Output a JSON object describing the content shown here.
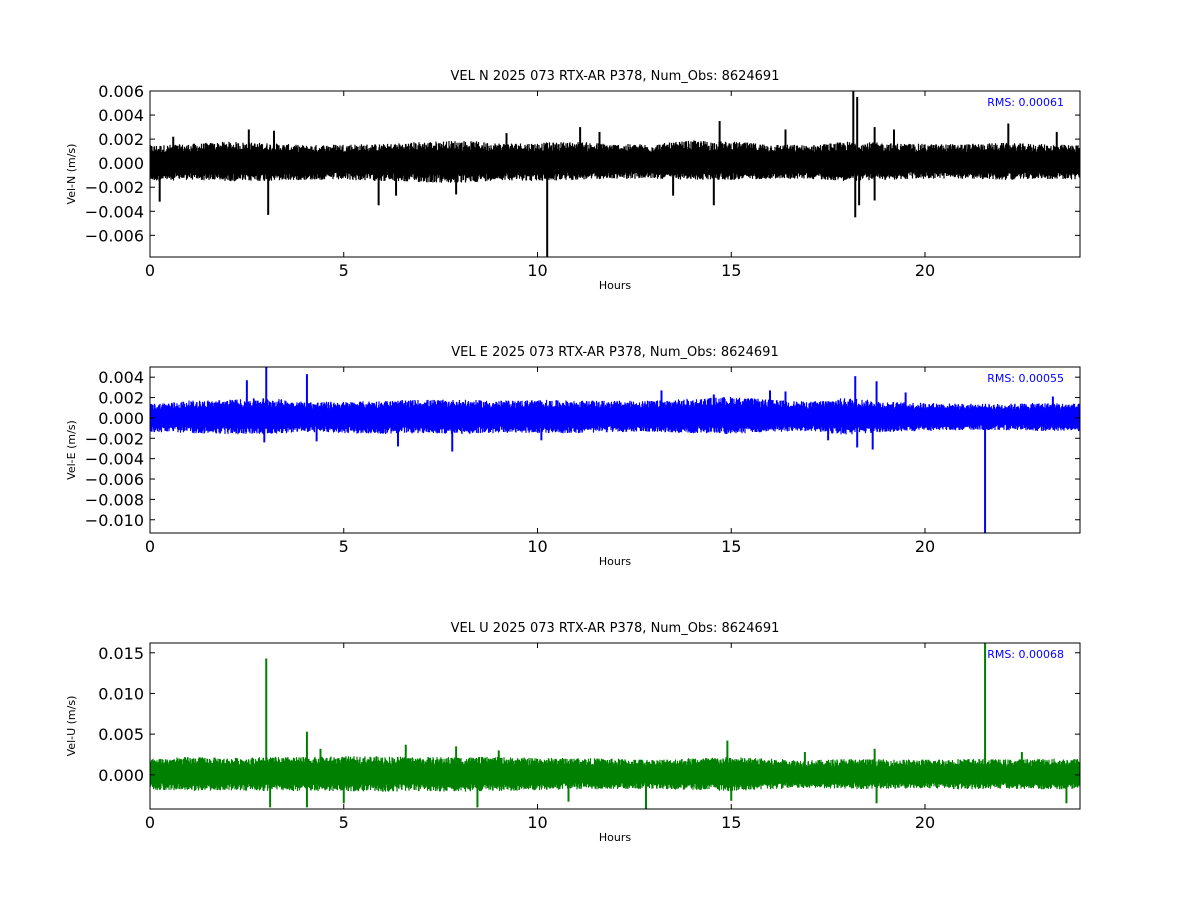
{
  "chart_data": [
    {
      "type": "line",
      "title": "VEL N 2025 073 RTX-AR  P378, Num_Obs: 8624691",
      "xlabel": "Hours",
      "ylabel": "Vel-N (m/s)",
      "annotation": "RMS:  0.00061",
      "color": "#000000",
      "annotation_color": "#0000ff",
      "xlim": [
        0,
        24
      ],
      "ylim": [
        -0.0078,
        0.006
      ],
      "xticks": [
        0,
        5,
        10,
        15,
        20
      ],
      "xtick_labels": [
        "0",
        "5",
        "10",
        "15",
        "20"
      ],
      "yticks": [
        -0.006,
        -0.004,
        -0.002,
        0.0,
        0.002,
        0.004,
        0.006
      ],
      "ytick_labels": [
        "−0.006",
        "−0.004",
        "−0.002",
        "0.000",
        "0.002",
        "0.004",
        "0.006"
      ],
      "grid": false,
      "series": [
        {
          "band": [
            [
              0,
              -0.0015,
              0.0015
            ],
            [
              1,
              -0.0014,
              0.0016
            ],
            [
              2,
              -0.0015,
              0.0018
            ],
            [
              3,
              -0.0015,
              0.0017
            ],
            [
              4,
              -0.0014,
              0.0015
            ],
            [
              5,
              -0.0014,
              0.0016
            ],
            [
              6,
              -0.0015,
              0.0016
            ],
            [
              7,
              -0.0016,
              0.0018
            ],
            [
              8,
              -0.0017,
              0.0019
            ],
            [
              9,
              -0.0014,
              0.0017
            ],
            [
              10,
              -0.0015,
              0.0017
            ],
            [
              11,
              -0.0014,
              0.0018
            ],
            [
              12,
              -0.0013,
              0.0016
            ],
            [
              13,
              -0.0013,
              0.0016
            ],
            [
              14,
              -0.0014,
              0.0019
            ],
            [
              15,
              -0.0014,
              0.0018
            ],
            [
              16,
              -0.0013,
              0.0016
            ],
            [
              17,
              -0.0013,
              0.0015
            ],
            [
              18,
              -0.0015,
              0.0018
            ],
            [
              19,
              -0.0014,
              0.0017
            ],
            [
              20,
              -0.0013,
              0.0016
            ],
            [
              21,
              -0.0013,
              0.0016
            ],
            [
              22,
              -0.0014,
              0.0017
            ],
            [
              23,
              -0.0013,
              0.0016
            ],
            [
              24,
              -0.0014,
              0.0015
            ]
          ],
          "spikes": [
            [
              0.25,
              -0.0032
            ],
            [
              0.6,
              0.0022
            ],
            [
              2.55,
              0.0028
            ],
            [
              3.05,
              -0.0043
            ],
            [
              3.2,
              0.0027
            ],
            [
              5.9,
              -0.0035
            ],
            [
              6.35,
              -0.0027
            ],
            [
              7.9,
              -0.0026
            ],
            [
              9.2,
              0.0025
            ],
            [
              10.25,
              -0.0078
            ],
            [
              11.1,
              0.003
            ],
            [
              11.6,
              0.0026
            ],
            [
              13.5,
              -0.0027
            ],
            [
              14.55,
              -0.0035
            ],
            [
              14.7,
              0.0035
            ],
            [
              16.4,
              0.0028
            ],
            [
              18.15,
              0.006
            ],
            [
              18.2,
              -0.0045
            ],
            [
              18.25,
              0.0055
            ],
            [
              18.3,
              -0.0035
            ],
            [
              18.7,
              -0.0031
            ],
            [
              18.7,
              0.003
            ],
            [
              19.2,
              0.0028
            ],
            [
              22.15,
              0.0033
            ],
            [
              23.4,
              0.0026
            ]
          ]
        }
      ]
    },
    {
      "type": "line",
      "title": "VEL E 2025 073 RTX-AR  P378, Num_Obs: 8624691",
      "xlabel": "Hours",
      "ylabel": "Vel-E (m/s)",
      "annotation": "RMS:  0.00055",
      "color": "#0000ff",
      "annotation_color": "#0000ff",
      "xlim": [
        0,
        24
      ],
      "ylim": [
        -0.0113,
        0.005
      ],
      "xticks": [
        0,
        5,
        10,
        15,
        20
      ],
      "xtick_labels": [
        "0",
        "5",
        "10",
        "15",
        "20"
      ],
      "yticks": [
        -0.01,
        -0.008,
        -0.006,
        -0.004,
        -0.002,
        0.0,
        0.002,
        0.004
      ],
      "ytick_labels": [
        "−0.010",
        "−0.008",
        "−0.006",
        "−0.004",
        "−0.002",
        "0.000",
        "0.002",
        "0.004"
      ],
      "grid": false,
      "series": [
        {
          "band": [
            [
              0,
              -0.0014,
              0.0014
            ],
            [
              1,
              -0.0015,
              0.0017
            ],
            [
              2,
              -0.0016,
              0.0018
            ],
            [
              3,
              -0.0016,
              0.002
            ],
            [
              4,
              -0.0014,
              0.0016
            ],
            [
              5,
              -0.0015,
              0.0016
            ],
            [
              6,
              -0.0016,
              0.0017
            ],
            [
              7,
              -0.0015,
              0.0018
            ],
            [
              8,
              -0.0016,
              0.0018
            ],
            [
              9,
              -0.0015,
              0.0017
            ],
            [
              10,
              -0.0015,
              0.0018
            ],
            [
              11,
              -0.0015,
              0.0017
            ],
            [
              12,
              -0.0014,
              0.0017
            ],
            [
              13,
              -0.0014,
              0.0017
            ],
            [
              14,
              -0.0015,
              0.0019
            ],
            [
              15,
              -0.0016,
              0.0021
            ],
            [
              16,
              -0.0014,
              0.0018
            ],
            [
              17,
              -0.0013,
              0.0016
            ],
            [
              18,
              -0.0017,
              0.002
            ],
            [
              19,
              -0.0014,
              0.0016
            ],
            [
              20,
              -0.0013,
              0.0015
            ],
            [
              21,
              -0.0012,
              0.0014
            ],
            [
              22,
              -0.0012,
              0.0014
            ],
            [
              23,
              -0.0013,
              0.0015
            ],
            [
              24,
              -0.0013,
              0.0014
            ]
          ],
          "spikes": [
            [
              2.5,
              0.0037
            ],
            [
              2.95,
              -0.0024
            ],
            [
              3.0,
              0.005
            ],
            [
              4.05,
              0.0043
            ],
            [
              4.3,
              -0.0023
            ],
            [
              6.4,
              -0.0028
            ],
            [
              7.8,
              -0.0033
            ],
            [
              10.1,
              -0.0022
            ],
            [
              13.2,
              0.0027
            ],
            [
              14.55,
              0.0023
            ],
            [
              16.0,
              0.0027
            ],
            [
              16.4,
              0.0026
            ],
            [
              17.5,
              -0.0022
            ],
            [
              18.2,
              0.0041
            ],
            [
              18.25,
              -0.0029
            ],
            [
              18.65,
              -0.0031
            ],
            [
              18.75,
              0.0036
            ],
            [
              19.5,
              0.0025
            ],
            [
              21.55,
              -0.0113
            ],
            [
              23.3,
              0.0021
            ]
          ]
        }
      ]
    },
    {
      "type": "line",
      "title": "VEL U 2025 073 RTX-AR  P378, Num_Obs: 8624691",
      "xlabel": "Hours",
      "ylabel": "Vel-U (m/s)",
      "annotation": "RMS:  0.00068",
      "color": "#008000",
      "annotation_color": "#0000ff",
      "xlim": [
        0,
        24
      ],
      "ylim": [
        -0.0042,
        0.0162
      ],
      "xticks": [
        0,
        5,
        10,
        15,
        20
      ],
      "xtick_labels": [
        "0",
        "5",
        "10",
        "15",
        "20"
      ],
      "yticks": [
        0.0,
        0.005,
        0.01,
        0.015
      ],
      "ytick_labels": [
        "0.000",
        "0.005",
        "0.010",
        "0.015"
      ],
      "grid": false,
      "series": [
        {
          "band": [
            [
              0,
              -0.0018,
              0.002
            ],
            [
              1,
              -0.002,
              0.0022
            ],
            [
              2,
              -0.0019,
              0.0021
            ],
            [
              3,
              -0.002,
              0.0022
            ],
            [
              4,
              -0.002,
              0.0022
            ],
            [
              5,
              -0.002,
              0.0023
            ],
            [
              6,
              -0.0021,
              0.0023
            ],
            [
              7,
              -0.002,
              0.0022
            ],
            [
              8,
              -0.0021,
              0.0022
            ],
            [
              9,
              -0.002,
              0.0022
            ],
            [
              10,
              -0.0019,
              0.0021
            ],
            [
              11,
              -0.0018,
              0.0021
            ],
            [
              12,
              -0.0018,
              0.002
            ],
            [
              13,
              -0.0017,
              0.0019
            ],
            [
              14,
              -0.0019,
              0.0021
            ],
            [
              15,
              -0.002,
              0.0022
            ],
            [
              16,
              -0.0018,
              0.002
            ],
            [
              17,
              -0.0016,
              0.0018
            ],
            [
              18,
              -0.0018,
              0.002
            ],
            [
              19,
              -0.0017,
              0.0019
            ],
            [
              20,
              -0.0017,
              0.0019
            ],
            [
              21,
              -0.0018,
              0.002
            ],
            [
              22,
              -0.0017,
              0.0019
            ],
            [
              23,
              -0.0018,
              0.002
            ],
            [
              24,
              -0.0018,
              0.002
            ]
          ],
          "spikes": [
            [
              3.0,
              0.0143
            ],
            [
              3.1,
              -0.004
            ],
            [
              4.05,
              0.0053
            ],
            [
              4.05,
              -0.004
            ],
            [
              4.4,
              0.0032
            ],
            [
              5.0,
              -0.0035
            ],
            [
              6.6,
              0.0037
            ],
            [
              7.9,
              0.0035
            ],
            [
              8.45,
              -0.004
            ],
            [
              9.0,
              0.003
            ],
            [
              10.8,
              -0.0033
            ],
            [
              12.8,
              -0.0042
            ],
            [
              14.9,
              0.0042
            ],
            [
              15.0,
              -0.0032
            ],
            [
              16.9,
              0.0028
            ],
            [
              18.7,
              0.0032
            ],
            [
              18.75,
              -0.0035
            ],
            [
              21.55,
              0.0162
            ],
            [
              22.5,
              0.0028
            ],
            [
              23.65,
              -0.0035
            ]
          ]
        }
      ]
    }
  ]
}
